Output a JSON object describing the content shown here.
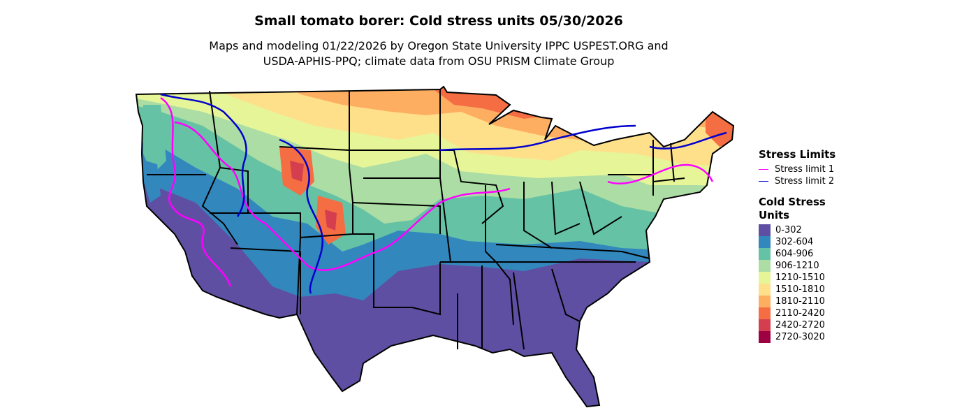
{
  "title": "Small tomato borer: Cold stress units 05/30/2026",
  "subtitle_line1": "Maps and modeling 01/22/2026 by Oregon State University IPPC USPEST.ORG and",
  "subtitle_line2": "USDA-APHIS-PPQ; climate data from OSU PRISM Climate Group",
  "legend": {
    "stress_title": "Stress Limits",
    "stress_items": [
      {
        "label": "Stress limit 1",
        "color": "#ff00ff"
      },
      {
        "label": "Stress limit 2",
        "color": "#0000cc"
      }
    ],
    "units_title_line1": "Cold Stress",
    "units_title_line2": "Units",
    "units_items": [
      {
        "label": "0-302",
        "color": "#5e4fa2"
      },
      {
        "label": "302-604",
        "color": "#3288bd"
      },
      {
        "label": "604-906",
        "color": "#66c2a5"
      },
      {
        "label": "906-1210",
        "color": "#abdda4"
      },
      {
        "label": "1210-1510",
        "color": "#e6f598"
      },
      {
        "label": "1510-1810",
        "color": "#fee08b"
      },
      {
        "label": "1810-2110",
        "color": "#fdae61"
      },
      {
        "label": "2110-2420",
        "color": "#f46d43"
      },
      {
        "label": "2420-2720",
        "color": "#d53e4f"
      },
      {
        "label": "2720-3020",
        "color": "#9e0142"
      }
    ]
  }
}
